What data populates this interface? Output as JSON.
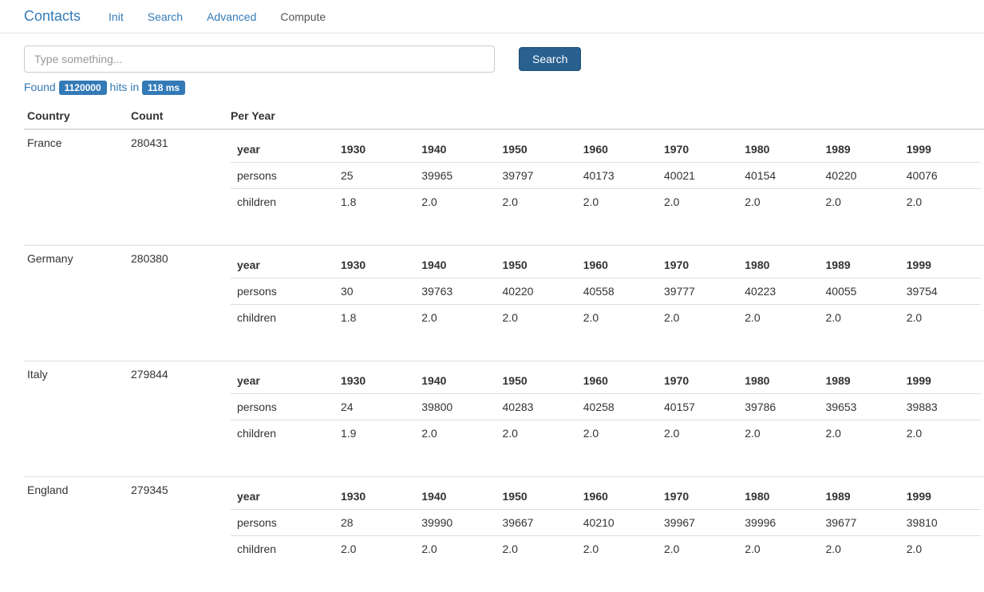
{
  "nav": {
    "brand": "Contacts",
    "links": [
      {
        "label": "Init",
        "active": false
      },
      {
        "label": "Search",
        "active": false
      },
      {
        "label": "Advanced",
        "active": false
      },
      {
        "label": "Compute",
        "active": true
      }
    ]
  },
  "search": {
    "placeholder": "Type something...",
    "button_label": "Search"
  },
  "status": {
    "found_label": "Found",
    "hits_value": "1120000",
    "hits_in_label": "hits in",
    "time_value": "118 ms"
  },
  "table": {
    "columns": [
      "Country",
      "Count",
      "Per Year"
    ],
    "year_row_label": "year",
    "persons_row_label": "persons",
    "children_row_label": "children",
    "years": [
      "1930",
      "1940",
      "1950",
      "1960",
      "1970",
      "1980",
      "1989",
      "1999"
    ],
    "rows": [
      {
        "country": "France",
        "count": "280431",
        "persons": [
          "25",
          "39965",
          "39797",
          "40173",
          "40021",
          "40154",
          "40220",
          "40076"
        ],
        "children": [
          "1.8",
          "2.0",
          "2.0",
          "2.0",
          "2.0",
          "2.0",
          "2.0",
          "2.0"
        ]
      },
      {
        "country": "Germany",
        "count": "280380",
        "persons": [
          "30",
          "39763",
          "40220",
          "40558",
          "39777",
          "40223",
          "40055",
          "39754"
        ],
        "children": [
          "1.8",
          "2.0",
          "2.0",
          "2.0",
          "2.0",
          "2.0",
          "2.0",
          "2.0"
        ]
      },
      {
        "country": "Italy",
        "count": "279844",
        "persons": [
          "24",
          "39800",
          "40283",
          "40258",
          "40157",
          "39786",
          "39653",
          "39883"
        ],
        "children": [
          "1.9",
          "2.0",
          "2.0",
          "2.0",
          "2.0",
          "2.0",
          "2.0",
          "2.0"
        ]
      },
      {
        "country": "England",
        "count": "279345",
        "persons": [
          "28",
          "39990",
          "39667",
          "40210",
          "39967",
          "39996",
          "39677",
          "39810"
        ],
        "children": [
          "2.0",
          "2.0",
          "2.0",
          "2.0",
          "2.0",
          "2.0",
          "2.0",
          "2.0"
        ]
      }
    ]
  },
  "style": {
    "link_color": "#337ab7",
    "badge_bg": "#337ab7",
    "button_bg": "#286090",
    "border_color": "#ddd"
  }
}
